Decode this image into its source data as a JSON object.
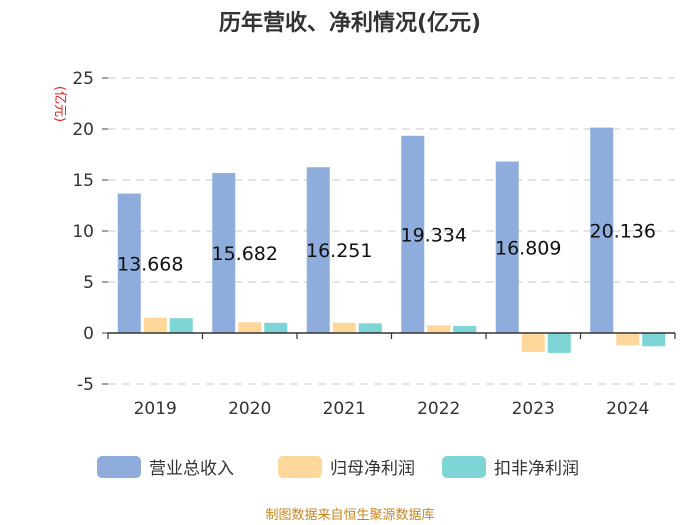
{
  "chart_data": {
    "type": "bar",
    "title": "历年营收、净利情况(亿元)",
    "unit_label": "(亿元)",
    "categories": [
      "2019",
      "2020",
      "2021",
      "2022",
      "2023",
      "2024"
    ],
    "series": [
      {
        "name": "营业总收入",
        "color": "#8eaddc",
        "values": [
          13.668,
          15.682,
          16.251,
          19.334,
          16.809,
          20.136
        ]
      },
      {
        "name": "归母净利润",
        "color": "#fdd89a",
        "values": [
          1.5,
          1.05,
          1.0,
          0.75,
          -1.85,
          -1.2
        ]
      },
      {
        "name": "扣非净利润",
        "color": "#7dd5d5",
        "values": [
          1.45,
          1.0,
          0.95,
          0.7,
          -1.95,
          -1.3
        ]
      }
    ],
    "data_labels": [
      "13.668",
      "15.682",
      "16.251",
      "19.334",
      "16.809",
      "20.136"
    ],
    "y_ticks": [
      "25",
      "20",
      "15",
      "10",
      "5",
      "0",
      "-5"
    ],
    "ylim": [
      -5,
      25
    ],
    "grid": true,
    "legend_position": "bottom"
  },
  "footer": "制图数据来自恒生聚源数据库"
}
